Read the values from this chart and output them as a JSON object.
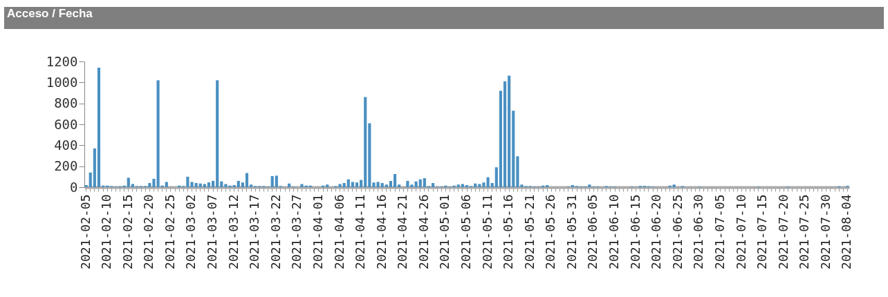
{
  "chart_data": {
    "type": "bar",
    "title": "Acceso / Fecha",
    "categories": [
      "2021-02-05",
      null,
      null,
      null,
      null,
      "2021-02-10",
      null,
      null,
      null,
      null,
      "2021-02-15",
      null,
      null,
      null,
      null,
      "2021-02-20",
      null,
      null,
      null,
      null,
      "2021-02-25",
      null,
      null,
      null,
      null,
      "2021-03-02",
      null,
      null,
      null,
      null,
      "2021-03-07",
      null,
      null,
      null,
      null,
      "2021-03-12",
      null,
      null,
      null,
      null,
      "2021-03-17",
      null,
      null,
      null,
      null,
      "2021-03-22",
      null,
      null,
      null,
      null,
      "2021-03-27",
      null,
      null,
      null,
      null,
      "2021-04-01",
      null,
      null,
      null,
      null,
      "2021-04-06",
      null,
      null,
      null,
      null,
      "2021-04-11",
      null,
      null,
      null,
      null,
      "2021-04-16",
      null,
      null,
      null,
      null,
      "2021-04-21",
      null,
      null,
      null,
      null,
      "2021-04-26",
      null,
      null,
      null,
      null,
      "2021-05-01",
      null,
      null,
      null,
      null,
      "2021-05-06",
      null,
      null,
      null,
      null,
      "2021-05-11",
      null,
      null,
      null,
      null,
      "2021-05-16",
      null,
      null,
      null,
      null,
      "2021-05-21",
      null,
      null,
      null,
      null,
      "2021-05-26",
      null,
      null,
      null,
      null,
      "2021-05-31",
      null,
      null,
      null,
      null,
      "2021-06-05",
      null,
      null,
      null,
      null,
      "2021-06-10",
      null,
      null,
      null,
      null,
      "2021-06-15",
      null,
      null,
      null,
      null,
      "2021-06-20",
      null,
      null,
      null,
      null,
      "2021-06-25",
      null,
      null,
      null,
      null,
      "2021-06-30",
      null,
      null,
      null,
      null,
      "2021-07-05",
      null,
      null,
      null,
      null,
      "2021-07-10",
      null,
      null,
      null,
      null,
      "2021-07-15",
      null,
      null,
      null,
      null,
      "2021-07-20",
      null,
      null,
      null,
      null,
      "2021-07-25",
      null,
      null,
      null,
      null,
      "2021-07-30",
      null,
      null,
      null,
      null,
      "2021-08-04"
    ],
    "values": [
      20,
      140,
      370,
      1140,
      15,
      15,
      10,
      5,
      8,
      15,
      90,
      30,
      10,
      10,
      10,
      40,
      80,
      1020,
      15,
      50,
      0,
      0,
      15,
      10,
      100,
      50,
      40,
      35,
      30,
      45,
      60,
      1020,
      55,
      30,
      15,
      20,
      60,
      45,
      135,
      25,
      10,
      10,
      10,
      5,
      105,
      110,
      10,
      0,
      35,
      5,
      0,
      30,
      15,
      15,
      0,
      0,
      15,
      25,
      0,
      10,
      30,
      40,
      75,
      50,
      45,
      70,
      860,
      610,
      45,
      50,
      40,
      25,
      60,
      125,
      25,
      0,
      60,
      25,
      55,
      75,
      85,
      10,
      40,
      5,
      5,
      15,
      5,
      15,
      25,
      30,
      20,
      10,
      35,
      30,
      45,
      95,
      40,
      190,
      920,
      1010,
      1065,
      730,
      295,
      25,
      10,
      10,
      5,
      5,
      15,
      20,
      null,
      null,
      null,
      null,
      5,
      20,
      10,
      5,
      5,
      25,
      5,
      5,
      0,
      10,
      5,
      5,
      0,
      0,
      0,
      5,
      0,
      12,
      12,
      8,
      5,
      0,
      0,
      0,
      15,
      25,
      0,
      10,
      0,
      0,
      0,
      5,
      0,
      0,
      0,
      0,
      0,
      0,
      0,
      0,
      0,
      0,
      0,
      0,
      0,
      5,
      0,
      0,
      0,
      0,
      0,
      0,
      5,
      0,
      0,
      0,
      0,
      0,
      0,
      0,
      0,
      0,
      0,
      0,
      8,
      0,
      12
    ],
    "color": "#4a90c2",
    "ylim": [
      0,
      1200
    ],
    "yticks": [
      0,
      200,
      400,
      600,
      800,
      1000,
      1200
    ]
  }
}
